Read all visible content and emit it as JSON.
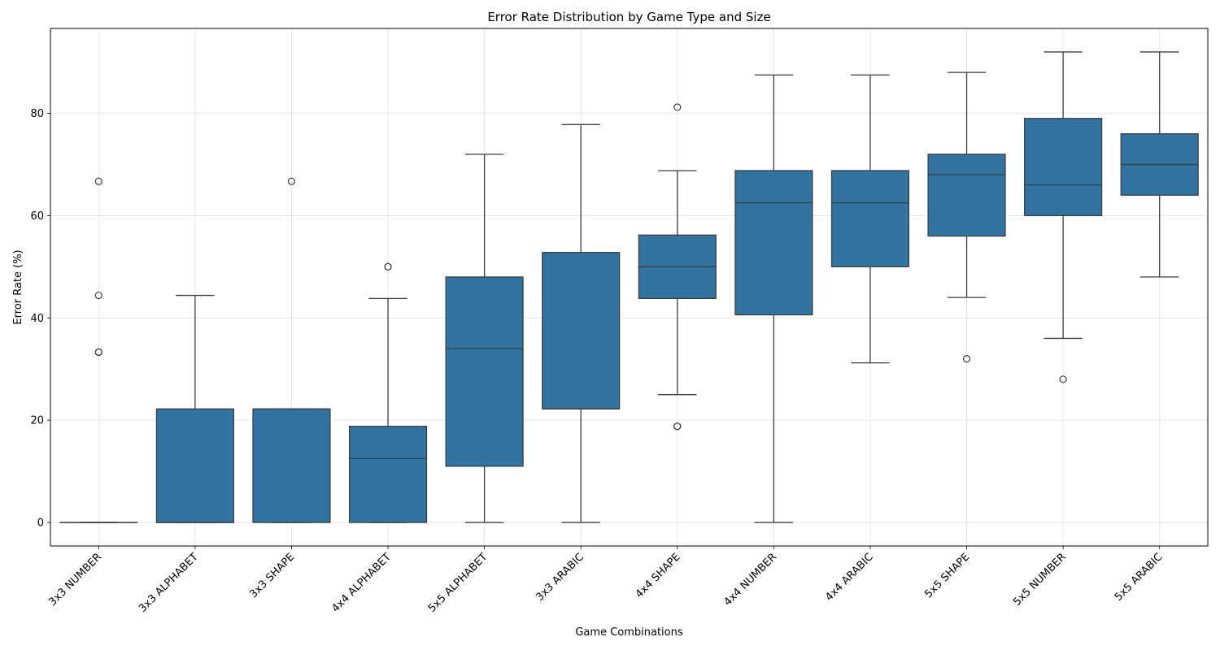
{
  "chart_data": {
    "type": "boxplot",
    "title": "Error Rate Distribution by Game Type and Size",
    "xlabel": "Game Combinations",
    "ylabel": "Error Rate (%)",
    "ylim": [
      -4.6,
      96.6
    ],
    "yticks": [
      0,
      20,
      40,
      60,
      80
    ],
    "grid": true,
    "box_color": "#3274a1",
    "categories": [
      "3x3 NUMBER",
      "3x3 ALPHABET",
      "3x3 SHAPE",
      "4x4 ALPHABET",
      "5x5 ALPHABET",
      "3x3 ARABIC",
      "4x4 SHAPE",
      "4x4 NUMBER",
      "4x4 ARABIC",
      "5x5 SHAPE",
      "5x5 NUMBER",
      "5x5 ARABIC"
    ],
    "boxes": [
      {
        "whisker_low": 0,
        "q1": 0,
        "median": 0,
        "q3": 0,
        "whisker_high": 0,
        "outliers": [
          66.7,
          44.4,
          33.3,
          33.3
        ]
      },
      {
        "whisker_low": 0,
        "q1": 0,
        "median": 0,
        "q3": 22.2,
        "whisker_high": 44.4,
        "outliers": []
      },
      {
        "whisker_low": 0,
        "q1": 0,
        "median": 22.2,
        "q3": 22.2,
        "whisker_high": 22.2,
        "outliers": [
          66.7
        ]
      },
      {
        "whisker_low": 0,
        "q1": 0,
        "median": 12.5,
        "q3": 18.8,
        "whisker_high": 43.8,
        "outliers": [
          50,
          50
        ]
      },
      {
        "whisker_low": 0,
        "q1": 11,
        "median": 34,
        "q3": 48,
        "whisker_high": 72,
        "outliers": []
      },
      {
        "whisker_low": 0,
        "q1": 22.2,
        "median": 22.2,
        "q3": 52.8,
        "whisker_high": 77.8,
        "outliers": []
      },
      {
        "whisker_low": 25,
        "q1": 43.8,
        "median": 50,
        "q3": 56.2,
        "whisker_high": 68.8,
        "outliers": [
          81.2,
          18.8,
          18.8
        ]
      },
      {
        "whisker_low": 0,
        "q1": 40.6,
        "median": 62.5,
        "q3": 68.8,
        "whisker_high": 87.5,
        "outliers": []
      },
      {
        "whisker_low": 31.2,
        "q1": 50,
        "median": 62.5,
        "q3": 68.8,
        "whisker_high": 87.5,
        "outliers": []
      },
      {
        "whisker_low": 44,
        "q1": 56,
        "median": 68,
        "q3": 72,
        "whisker_high": 88,
        "outliers": [
          32
        ]
      },
      {
        "whisker_low": 36,
        "q1": 60,
        "median": 66,
        "q3": 79,
        "whisker_high": 92,
        "outliers": [
          28
        ]
      },
      {
        "whisker_low": 48,
        "q1": 64,
        "median": 70,
        "q3": 76,
        "whisker_high": 92,
        "outliers": []
      }
    ]
  }
}
